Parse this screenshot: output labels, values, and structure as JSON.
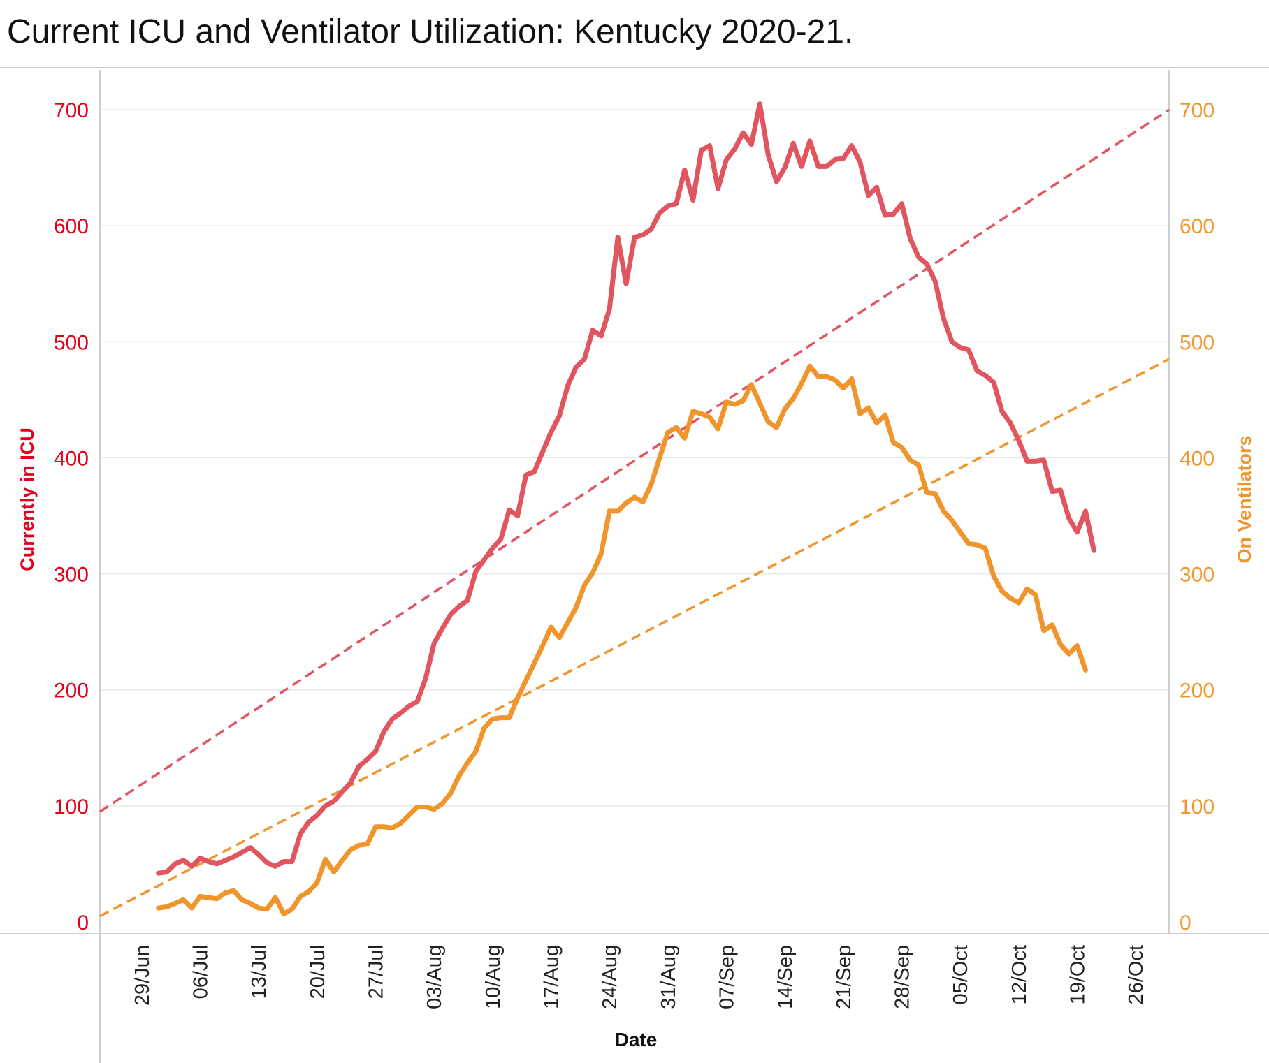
{
  "chart_data": {
    "type": "line",
    "title": "Current ICU and Ventilator Utilization:  Kentucky 2020-21.",
    "xlabel": "Date",
    "ylabel_left": "Currently in ICU",
    "ylabel_right": "On  Ventilators",
    "x_ticks": [
      "29/Jun",
      "06/Jul",
      "13/Jul",
      "20/Jul",
      "27/Jul",
      "03/Aug",
      "10/Aug",
      "17/Aug",
      "24/Aug",
      "31/Aug",
      "07/Sep",
      "14/Sep",
      "21/Sep",
      "28/Sep",
      "05/Oct",
      "12/Oct",
      "19/Oct",
      "26/Oct"
    ],
    "y_ticks_left": [
      "0",
      "100",
      "200",
      "300",
      "400",
      "500",
      "600",
      "700"
    ],
    "y_ticks_right": [
      "0",
      "100",
      "200",
      "300",
      "400",
      "500",
      "600",
      "700"
    ],
    "ylim_left": [
      0,
      700
    ],
    "ylim_right": [
      0,
      700
    ],
    "xlim": [
      "2021-06-24",
      "2021-10-30"
    ],
    "grid": "horizontal",
    "colors": {
      "icu": "#e05560",
      "vent": "#f0952c",
      "left_axis": "#e3001b",
      "right_axis": "#f0952c",
      "grid": "#e8e8e8",
      "axis_line": "#cfcfcf"
    },
    "series": [
      {
        "name": "Currently in ICU",
        "axis": "left",
        "points": [
          [
            "2021-07-01",
            42
          ],
          [
            "2021-07-02",
            43
          ],
          [
            "2021-07-03",
            50
          ],
          [
            "2021-07-04",
            53
          ],
          [
            "2021-07-05",
            48
          ],
          [
            "2021-07-06",
            55
          ],
          [
            "2021-07-07",
            52
          ],
          [
            "2021-07-08",
            50
          ],
          [
            "2021-07-09",
            53
          ],
          [
            "2021-07-10",
            56
          ],
          [
            "2021-07-11",
            60
          ],
          [
            "2021-07-12",
            64
          ],
          [
            "2021-07-13",
            58
          ],
          [
            "2021-07-14",
            51
          ],
          [
            "2021-07-15",
            48
          ],
          [
            "2021-07-16",
            52
          ],
          [
            "2021-07-17",
            52
          ],
          [
            "2021-07-18",
            76
          ],
          [
            "2021-07-19",
            86
          ],
          [
            "2021-07-20",
            92
          ],
          [
            "2021-07-21",
            100
          ],
          [
            "2021-07-22",
            104
          ],
          [
            "2021-07-23",
            112
          ],
          [
            "2021-07-24",
            120
          ],
          [
            "2021-07-25",
            134
          ],
          [
            "2021-07-26",
            140
          ],
          [
            "2021-07-27",
            147
          ],
          [
            "2021-07-28",
            164
          ],
          [
            "2021-07-29",
            175
          ],
          [
            "2021-07-30",
            180
          ],
          [
            "2021-07-31",
            186
          ],
          [
            "2021-08-01",
            190
          ],
          [
            "2021-08-02",
            210
          ],
          [
            "2021-08-03",
            240
          ],
          [
            "2021-08-04",
            253
          ],
          [
            "2021-08-05",
            265
          ],
          [
            "2021-08-06",
            272
          ],
          [
            "2021-08-07",
            277
          ],
          [
            "2021-08-08",
            302
          ],
          [
            "2021-08-09",
            312
          ],
          [
            "2021-08-10",
            322
          ],
          [
            "2021-08-11",
            330
          ],
          [
            "2021-08-12",
            355
          ],
          [
            "2021-08-13",
            350
          ],
          [
            "2021-08-14",
            385
          ],
          [
            "2021-08-15",
            388
          ],
          [
            "2021-08-16",
            405
          ],
          [
            "2021-08-17",
            422
          ],
          [
            "2021-08-18",
            436
          ],
          [
            "2021-08-19",
            462
          ],
          [
            "2021-08-20",
            478
          ],
          [
            "2021-08-21",
            485
          ],
          [
            "2021-08-22",
            510
          ],
          [
            "2021-08-23",
            505
          ],
          [
            "2021-08-24",
            528
          ],
          [
            "2021-08-25",
            590
          ],
          [
            "2021-08-26",
            550
          ],
          [
            "2021-08-27",
            590
          ],
          [
            "2021-08-28",
            592
          ],
          [
            "2021-08-29",
            597
          ],
          [
            "2021-08-30",
            611
          ],
          [
            "2021-08-31",
            617
          ],
          [
            "2021-09-01",
            619
          ],
          [
            "2021-09-02",
            648
          ],
          [
            "2021-09-03",
            622
          ],
          [
            "2021-09-04",
            665
          ],
          [
            "2021-09-05",
            669
          ],
          [
            "2021-09-06",
            632
          ],
          [
            "2021-09-07",
            657
          ],
          [
            "2021-09-08",
            666
          ],
          [
            "2021-09-09",
            680
          ],
          [
            "2021-09-10",
            670
          ],
          [
            "2021-09-11",
            705
          ],
          [
            "2021-09-12",
            661
          ],
          [
            "2021-09-13",
            638
          ],
          [
            "2021-09-14",
            650
          ],
          [
            "2021-09-15",
            671
          ],
          [
            "2021-09-16",
            651
          ],
          [
            "2021-09-17",
            673
          ],
          [
            "2021-09-18",
            651
          ],
          [
            "2021-09-19",
            651
          ],
          [
            "2021-09-20",
            657
          ],
          [
            "2021-09-21",
            658
          ],
          [
            "2021-09-22",
            669
          ],
          [
            "2021-09-23",
            655
          ],
          [
            "2021-09-24",
            626
          ],
          [
            "2021-09-25",
            633
          ],
          [
            "2021-09-26",
            609
          ],
          [
            "2021-09-27",
            610
          ],
          [
            "2021-09-28",
            619
          ],
          [
            "2021-09-29",
            589
          ],
          [
            "2021-09-30",
            573
          ],
          [
            "2021-10-01",
            567
          ],
          [
            "2021-10-02",
            552
          ],
          [
            "2021-10-03",
            520
          ],
          [
            "2021-10-04",
            500
          ],
          [
            "2021-10-05",
            495
          ],
          [
            "2021-10-06",
            493
          ],
          [
            "2021-10-07",
            475
          ],
          [
            "2021-10-08",
            471
          ],
          [
            "2021-10-09",
            465
          ],
          [
            "2021-10-10",
            440
          ],
          [
            "2021-10-11",
            430
          ],
          [
            "2021-10-12",
            415
          ],
          [
            "2021-10-13",
            397
          ],
          [
            "2021-10-14",
            397
          ],
          [
            "2021-10-15",
            398
          ],
          [
            "2021-10-16",
            371
          ],
          [
            "2021-10-17",
            372
          ],
          [
            "2021-10-18",
            348
          ],
          [
            "2021-10-19",
            336
          ],
          [
            "2021-10-20",
            354
          ],
          [
            "2021-10-21",
            320
          ]
        ]
      },
      {
        "name": "On  Ventilators",
        "axis": "right",
        "points": [
          [
            "2021-07-01",
            12
          ],
          [
            "2021-07-02",
            13
          ],
          [
            "2021-07-03",
            16
          ],
          [
            "2021-07-04",
            19
          ],
          [
            "2021-07-05",
            12
          ],
          [
            "2021-07-06",
            22
          ],
          [
            "2021-07-07",
            21
          ],
          [
            "2021-07-08",
            20
          ],
          [
            "2021-07-09",
            25
          ],
          [
            "2021-07-10",
            27
          ],
          [
            "2021-07-11",
            19
          ],
          [
            "2021-07-12",
            16
          ],
          [
            "2021-07-13",
            12
          ],
          [
            "2021-07-14",
            11
          ],
          [
            "2021-07-15",
            21
          ],
          [
            "2021-07-16",
            7
          ],
          [
            "2021-07-17",
            11
          ],
          [
            "2021-07-18",
            22
          ],
          [
            "2021-07-19",
            26
          ],
          [
            "2021-07-20",
            34
          ],
          [
            "2021-07-21",
            54
          ],
          [
            "2021-07-22",
            43
          ],
          [
            "2021-07-23",
            53
          ],
          [
            "2021-07-24",
            62
          ],
          [
            "2021-07-25",
            66
          ],
          [
            "2021-07-26",
            67
          ],
          [
            "2021-07-27",
            82
          ],
          [
            "2021-07-28",
            82
          ],
          [
            "2021-07-29",
            81
          ],
          [
            "2021-07-30",
            85
          ],
          [
            "2021-07-31",
            92
          ],
          [
            "2021-08-01",
            99
          ],
          [
            "2021-08-02",
            99
          ],
          [
            "2021-08-03",
            97
          ],
          [
            "2021-08-04",
            102
          ],
          [
            "2021-08-05",
            111
          ],
          [
            "2021-08-06",
            126
          ],
          [
            "2021-08-07",
            137
          ],
          [
            "2021-08-08",
            147
          ],
          [
            "2021-08-09",
            167
          ],
          [
            "2021-08-10",
            175
          ],
          [
            "2021-08-11",
            176
          ],
          [
            "2021-08-12",
            176
          ],
          [
            "2021-08-13",
            193
          ],
          [
            "2021-08-14",
            208
          ],
          [
            "2021-08-15",
            223
          ],
          [
            "2021-08-16",
            238
          ],
          [
            "2021-08-17",
            254
          ],
          [
            "2021-08-18",
            245
          ],
          [
            "2021-08-19",
            258
          ],
          [
            "2021-08-20",
            271
          ],
          [
            "2021-08-21",
            290
          ],
          [
            "2021-08-22",
            301
          ],
          [
            "2021-08-23",
            317
          ],
          [
            "2021-08-24",
            354
          ],
          [
            "2021-08-25",
            354
          ],
          [
            "2021-08-26",
            361
          ],
          [
            "2021-08-27",
            366
          ],
          [
            "2021-08-28",
            362
          ],
          [
            "2021-08-29",
            377
          ],
          [
            "2021-08-30",
            400
          ],
          [
            "2021-08-31",
            422
          ],
          [
            "2021-09-01",
            426
          ],
          [
            "2021-09-02",
            417
          ],
          [
            "2021-09-03",
            440
          ],
          [
            "2021-09-04",
            438
          ],
          [
            "2021-09-05",
            435
          ],
          [
            "2021-09-06",
            425
          ],
          [
            "2021-09-07",
            448
          ],
          [
            "2021-09-08",
            446
          ],
          [
            "2021-09-09",
            449
          ],
          [
            "2021-09-10",
            463
          ],
          [
            "2021-09-11",
            447
          ],
          [
            "2021-09-12",
            431
          ],
          [
            "2021-09-13",
            426
          ],
          [
            "2021-09-14",
            442
          ],
          [
            "2021-09-15",
            451
          ],
          [
            "2021-09-16",
            464
          ],
          [
            "2021-09-17",
            479
          ],
          [
            "2021-09-18",
            470
          ],
          [
            "2021-09-19",
            470
          ],
          [
            "2021-09-20",
            467
          ],
          [
            "2021-09-21",
            460
          ],
          [
            "2021-09-22",
            468
          ],
          [
            "2021-09-23",
            438
          ],
          [
            "2021-09-24",
            443
          ],
          [
            "2021-09-25",
            430
          ],
          [
            "2021-09-26",
            437
          ],
          [
            "2021-09-27",
            413
          ],
          [
            "2021-09-28",
            409
          ],
          [
            "2021-09-29",
            398
          ],
          [
            "2021-09-30",
            394
          ],
          [
            "2021-10-01",
            370
          ],
          [
            "2021-10-02",
            369
          ],
          [
            "2021-10-03",
            354
          ],
          [
            "2021-10-04",
            346
          ],
          [
            "2021-10-05",
            336
          ],
          [
            "2021-10-06",
            326
          ],
          [
            "2021-10-07",
            325
          ],
          [
            "2021-10-08",
            322
          ],
          [
            "2021-10-09",
            298
          ],
          [
            "2021-10-10",
            285
          ],
          [
            "2021-10-11",
            279
          ],
          [
            "2021-10-12",
            275
          ],
          [
            "2021-10-13",
            287
          ],
          [
            "2021-10-14",
            282
          ],
          [
            "2021-10-15",
            251
          ],
          [
            "2021-10-16",
            256
          ],
          [
            "2021-10-17",
            239
          ],
          [
            "2021-10-18",
            231
          ],
          [
            "2021-10-19",
            238
          ],
          [
            "2021-10-20",
            217
          ]
        ]
      }
    ],
    "trendlines": [
      {
        "series": "Currently in ICU",
        "style": "dashed",
        "from": [
          "2021-06-24",
          95
        ],
        "to": [
          "2021-10-30",
          700
        ]
      },
      {
        "series": "On  Ventilators",
        "style": "dashed",
        "from": [
          "2021-06-24",
          5
        ],
        "to": [
          "2021-10-30",
          485
        ]
      }
    ]
  }
}
